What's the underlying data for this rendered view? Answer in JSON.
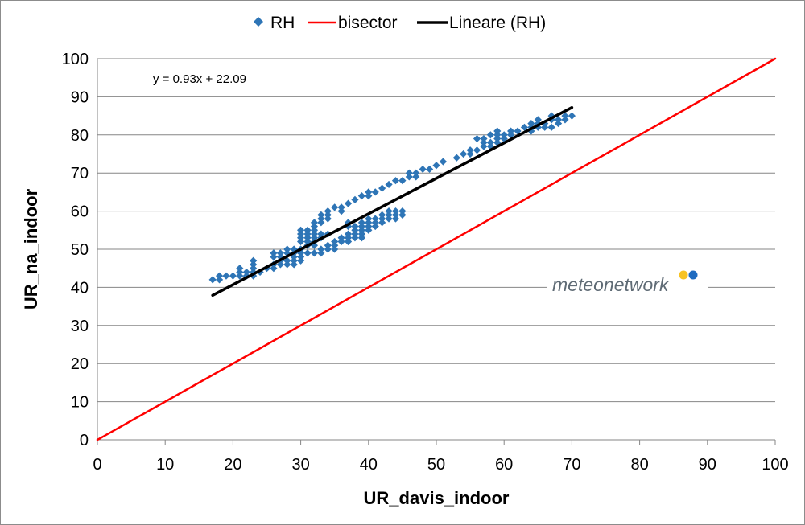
{
  "chart_data": {
    "type": "scatter",
    "xlabel": "UR_davis_indoor",
    "ylabel": "UR_na_indoor",
    "xlim": [
      0,
      100
    ],
    "ylim": [
      0,
      100
    ],
    "xticks": [
      "0",
      "10",
      "20",
      "30",
      "40",
      "50",
      "60",
      "70",
      "80",
      "90",
      "100"
    ],
    "yticks": [
      "0",
      "10",
      "20",
      "30",
      "40",
      "50",
      "60",
      "70",
      "80",
      "90",
      "100"
    ],
    "grid": "horizontal",
    "legend_position": "top",
    "trendline_equation": "y = 0.93x + 22.09",
    "series": [
      {
        "name": "RH",
        "kind": "scatter",
        "marker": "diamond",
        "color": "#2e75b6",
        "points": [
          [
            17,
            42
          ],
          [
            18,
            42
          ],
          [
            18,
            43
          ],
          [
            19,
            43
          ],
          [
            20,
            43
          ],
          [
            21,
            43
          ],
          [
            21,
            44
          ],
          [
            21,
            45
          ],
          [
            22,
            44
          ],
          [
            22,
            43
          ],
          [
            23,
            43
          ],
          [
            23,
            44
          ],
          [
            23,
            45
          ],
          [
            23,
            46
          ],
          [
            23,
            47
          ],
          [
            24,
            44
          ],
          [
            25,
            45
          ],
          [
            26,
            45
          ],
          [
            26,
            46
          ],
          [
            26,
            48
          ],
          [
            26,
            49
          ],
          [
            27,
            46
          ],
          [
            27,
            47
          ],
          [
            27,
            48
          ],
          [
            27,
            49
          ],
          [
            28,
            46
          ],
          [
            28,
            47
          ],
          [
            28,
            49
          ],
          [
            28,
            50
          ],
          [
            29,
            46
          ],
          [
            29,
            47
          ],
          [
            29,
            48
          ],
          [
            29,
            49
          ],
          [
            29,
            50
          ],
          [
            30,
            47
          ],
          [
            30,
            48
          ],
          [
            30,
            49
          ],
          [
            30,
            50
          ],
          [
            30,
            52
          ],
          [
            30,
            53
          ],
          [
            30,
            54
          ],
          [
            30,
            55
          ],
          [
            31,
            49
          ],
          [
            31,
            51
          ],
          [
            31,
            52
          ],
          [
            31,
            53
          ],
          [
            31,
            54
          ],
          [
            31,
            55
          ],
          [
            32,
            49
          ],
          [
            32,
            51
          ],
          [
            32,
            52
          ],
          [
            32,
            53
          ],
          [
            32,
            54
          ],
          [
            32,
            55
          ],
          [
            32,
            56
          ],
          [
            32,
            57
          ],
          [
            33,
            49
          ],
          [
            33,
            50
          ],
          [
            33,
            53
          ],
          [
            33,
            54
          ],
          [
            33,
            57
          ],
          [
            33,
            58
          ],
          [
            33,
            59
          ],
          [
            34,
            50
          ],
          [
            34,
            51
          ],
          [
            34,
            54
          ],
          [
            34,
            58
          ],
          [
            34,
            59
          ],
          [
            34,
            60
          ],
          [
            35,
            50
          ],
          [
            35,
            51
          ],
          [
            35,
            52
          ],
          [
            35,
            61
          ],
          [
            36,
            52
          ],
          [
            36,
            53
          ],
          [
            36,
            60
          ],
          [
            36,
            61
          ],
          [
            37,
            52
          ],
          [
            37,
            53
          ],
          [
            37,
            54
          ],
          [
            37,
            56
          ],
          [
            37,
            57
          ],
          [
            37,
            62
          ],
          [
            38,
            53
          ],
          [
            38,
            54
          ],
          [
            38,
            55
          ],
          [
            38,
            56
          ],
          [
            38,
            63
          ],
          [
            39,
            53
          ],
          [
            39,
            54
          ],
          [
            39,
            55
          ],
          [
            39,
            56
          ],
          [
            39,
            57
          ],
          [
            39,
            64
          ],
          [
            40,
            55
          ],
          [
            40,
            56
          ],
          [
            40,
            57
          ],
          [
            40,
            58
          ],
          [
            40,
            64
          ],
          [
            40,
            65
          ],
          [
            41,
            56
          ],
          [
            41,
            57
          ],
          [
            41,
            58
          ],
          [
            41,
            65
          ],
          [
            42,
            57
          ],
          [
            42,
            58
          ],
          [
            42,
            59
          ],
          [
            42,
            66
          ],
          [
            43,
            58
          ],
          [
            43,
            59
          ],
          [
            43,
            60
          ],
          [
            43,
            67
          ],
          [
            44,
            58
          ],
          [
            44,
            59
          ],
          [
            44,
            60
          ],
          [
            44,
            68
          ],
          [
            45,
            59
          ],
          [
            45,
            60
          ],
          [
            45,
            68
          ],
          [
            46,
            69
          ],
          [
            46,
            70
          ],
          [
            47,
            69
          ],
          [
            47,
            70
          ],
          [
            48,
            71
          ],
          [
            49,
            71
          ],
          [
            50,
            72
          ],
          [
            51,
            73
          ],
          [
            53,
            74
          ],
          [
            54,
            75
          ],
          [
            55,
            75
          ],
          [
            55,
            76
          ],
          [
            56,
            76
          ],
          [
            56,
            79
          ],
          [
            57,
            77
          ],
          [
            57,
            78
          ],
          [
            57,
            79
          ],
          [
            58,
            77
          ],
          [
            58,
            78
          ],
          [
            58,
            80
          ],
          [
            59,
            78
          ],
          [
            59,
            79
          ],
          [
            59,
            80
          ],
          [
            59,
            81
          ],
          [
            60,
            79
          ],
          [
            60,
            80
          ],
          [
            61,
            80
          ],
          [
            61,
            81
          ],
          [
            62,
            81
          ],
          [
            63,
            82
          ],
          [
            64,
            81
          ],
          [
            64,
            82
          ],
          [
            64,
            83
          ],
          [
            65,
            82
          ],
          [
            65,
            83
          ],
          [
            65,
            84
          ],
          [
            66,
            82
          ],
          [
            66,
            83
          ],
          [
            67,
            82
          ],
          [
            67,
            84
          ],
          [
            67,
            85
          ],
          [
            68,
            83
          ],
          [
            68,
            84
          ],
          [
            69,
            84
          ],
          [
            69,
            85
          ],
          [
            70,
            85
          ]
        ]
      },
      {
        "name": "bisector",
        "kind": "line",
        "color": "#ff0000",
        "points": [
          [
            0,
            0
          ],
          [
            100,
            100
          ]
        ]
      },
      {
        "name": "Lineare (RH)",
        "kind": "line",
        "color": "#000000",
        "points": [
          [
            17,
            37.9
          ],
          [
            70,
            87.2
          ]
        ]
      }
    ]
  },
  "watermark": {
    "text": "meteonetwork",
    "dot_colors": [
      "#f7c325",
      "#1f6bc0"
    ]
  }
}
